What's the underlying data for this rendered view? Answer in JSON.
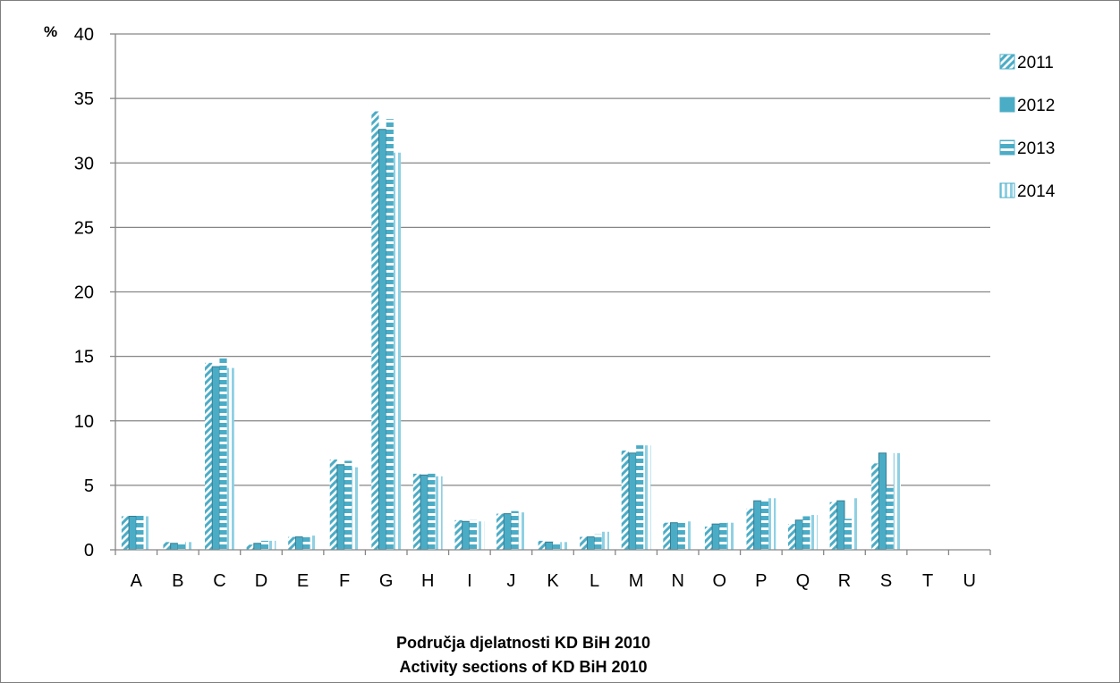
{
  "chart_data": {
    "type": "bar",
    "y_unit": "%",
    "xlabel_lines": [
      "Područja djelatnosti KD BiH 2010",
      "Activity sections of KD BiH 2010"
    ],
    "ylim": [
      0,
      40
    ],
    "yticks": [
      0,
      5,
      10,
      15,
      20,
      25,
      30,
      35,
      40
    ],
    "grid": true,
    "legend_position": "right",
    "categories": [
      "A",
      "B",
      "C",
      "D",
      "E",
      "F",
      "G",
      "H",
      "I",
      "J",
      "K",
      "L",
      "M",
      "N",
      "O",
      "P",
      "Q",
      "R",
      "S",
      "T",
      "U"
    ],
    "series": [
      {
        "name": "2011",
        "pattern": "diagonal-stripes",
        "color": "#4bacc6",
        "values": [
          2.6,
          0.6,
          14.5,
          0.4,
          1.0,
          7.0,
          34.0,
          5.9,
          2.3,
          2.8,
          0.7,
          1.0,
          7.7,
          2.1,
          1.8,
          3.2,
          2.0,
          3.7,
          6.7,
          0,
          0
        ]
      },
      {
        "name": "2012",
        "pattern": "solid",
        "color": "#4bacc6",
        "values": [
          2.6,
          0.5,
          14.2,
          0.5,
          1.0,
          6.6,
          32.6,
          5.8,
          2.2,
          2.8,
          0.6,
          1.0,
          7.5,
          2.1,
          2.0,
          3.8,
          2.3,
          3.8,
          7.5,
          0,
          0
        ]
      },
      {
        "name": "2013",
        "pattern": "horizontal-stripes",
        "color": "#4bacc6",
        "values": [
          2.8,
          0.6,
          14.9,
          0.7,
          1.1,
          6.9,
          33.4,
          5.9,
          2.3,
          3.0,
          0.6,
          1.2,
          8.1,
          2.2,
          2.1,
          3.8,
          2.6,
          2.4,
          4.8,
          0,
          0
        ]
      },
      {
        "name": "2014",
        "pattern": "vertical-stripes",
        "color": "#4bacc6",
        "values": [
          2.6,
          0.6,
          14.1,
          0.7,
          1.1,
          6.4,
          30.8,
          5.7,
          2.2,
          2.9,
          0.6,
          1.4,
          8.1,
          2.2,
          2.1,
          4.0,
          2.7,
          4.0,
          7.5,
          0,
          0
        ]
      }
    ]
  }
}
